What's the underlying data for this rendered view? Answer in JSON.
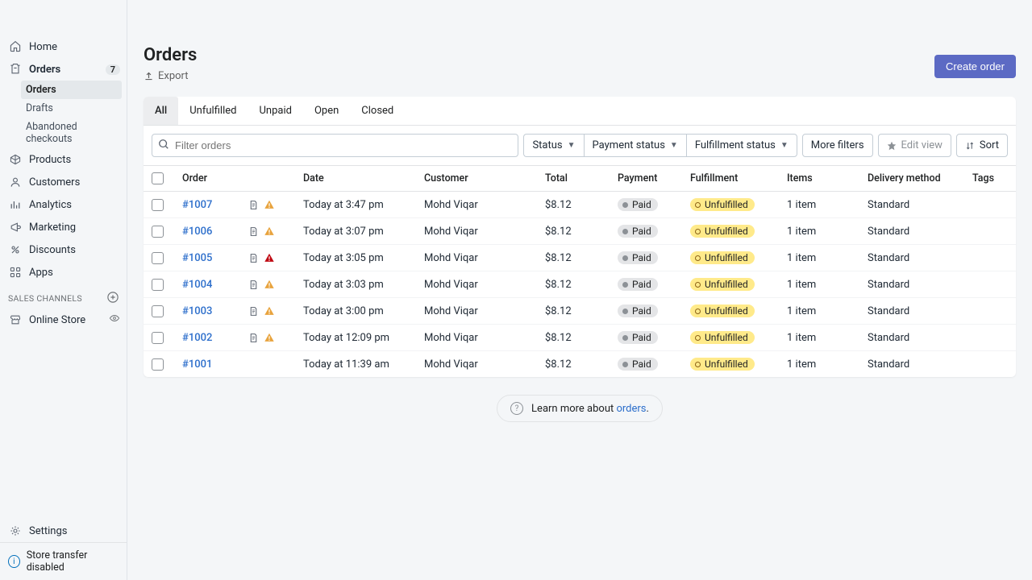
{
  "sidebar": {
    "items": [
      {
        "label": "Home",
        "icon": "home"
      },
      {
        "label": "Orders",
        "icon": "orders",
        "badge": "7",
        "active": true
      },
      {
        "label": "Products",
        "icon": "products"
      },
      {
        "label": "Customers",
        "icon": "customers"
      },
      {
        "label": "Analytics",
        "icon": "analytics"
      },
      {
        "label": "Marketing",
        "icon": "marketing"
      },
      {
        "label": "Discounts",
        "icon": "discounts"
      },
      {
        "label": "Apps",
        "icon": "apps"
      }
    ],
    "orders_sub": [
      {
        "label": "Orders",
        "selected": true
      },
      {
        "label": "Drafts"
      },
      {
        "label": "Abandoned checkouts"
      }
    ],
    "sales_channels_header": "SALES CHANNELS",
    "channels": [
      {
        "label": "Online Store",
        "icon": "store"
      }
    ],
    "settings_label": "Settings",
    "footer_info": "Store transfer disabled"
  },
  "page": {
    "title": "Orders",
    "export": "Export",
    "create_button": "Create order"
  },
  "tabs": [
    "All",
    "Unfulfilled",
    "Unpaid",
    "Open",
    "Closed"
  ],
  "active_tab": 0,
  "toolbar": {
    "search_placeholder": "Filter orders",
    "filters": [
      "Status",
      "Payment status",
      "Fulfillment status"
    ],
    "more_filters": "More filters",
    "edit_view": "Edit view",
    "sort": "Sort"
  },
  "columns": [
    "Order",
    "Date",
    "Customer",
    "Total",
    "Payment",
    "Fulfillment",
    "Items",
    "Delivery method",
    "Tags"
  ],
  "rows": [
    {
      "order": "#1007",
      "warn": "orange",
      "date": "Today at 3:47 pm",
      "customer": "Mohd Viqar",
      "total": "$8.12",
      "payment": "Paid",
      "fulfill": "Unfulfilled",
      "items": "1 item",
      "delivery": "Standard"
    },
    {
      "order": "#1006",
      "warn": "orange",
      "date": "Today at 3:07 pm",
      "customer": "Mohd Viqar",
      "total": "$8.12",
      "payment": "Paid",
      "fulfill": "Unfulfilled",
      "items": "1 item",
      "delivery": "Standard"
    },
    {
      "order": "#1005",
      "warn": "red",
      "date": "Today at 3:05 pm",
      "customer": "Mohd Viqar",
      "total": "$8.12",
      "payment": "Paid",
      "fulfill": "Unfulfilled",
      "items": "1 item",
      "delivery": "Standard"
    },
    {
      "order": "#1004",
      "warn": "orange",
      "date": "Today at 3:03 pm",
      "customer": "Mohd Viqar",
      "total": "$8.12",
      "payment": "Paid",
      "fulfill": "Unfulfilled",
      "items": "1 item",
      "delivery": "Standard"
    },
    {
      "order": "#1003",
      "warn": "orange",
      "date": "Today at 3:00 pm",
      "customer": "Mohd Viqar",
      "total": "$8.12",
      "payment": "Paid",
      "fulfill": "Unfulfilled",
      "items": "1 item",
      "delivery": "Standard"
    },
    {
      "order": "#1002",
      "warn": "orange",
      "date": "Today at 12:09 pm",
      "customer": "Mohd Viqar",
      "total": "$8.12",
      "payment": "Paid",
      "fulfill": "Unfulfilled",
      "items": "1 item",
      "delivery": "Standard"
    },
    {
      "order": "#1001",
      "warn": null,
      "date": "Today at 11:39 am",
      "customer": "Mohd Viqar",
      "total": "$8.12",
      "payment": "Paid",
      "fulfill": "Unfulfilled",
      "items": "1 item",
      "delivery": "Standard"
    }
  ],
  "learn": {
    "text": "Learn more about ",
    "link": "orders"
  },
  "colors": {
    "primary": "#5c6ac4",
    "link": "#2c6ecb",
    "bg": "#f4f6f8",
    "border": "#e1e3e5",
    "badge_unfulfilled": "#ffea8a",
    "badge_paid": "#e4e5e7",
    "warn_orange": "#e8a33d",
    "warn_red": "#bf0711"
  }
}
